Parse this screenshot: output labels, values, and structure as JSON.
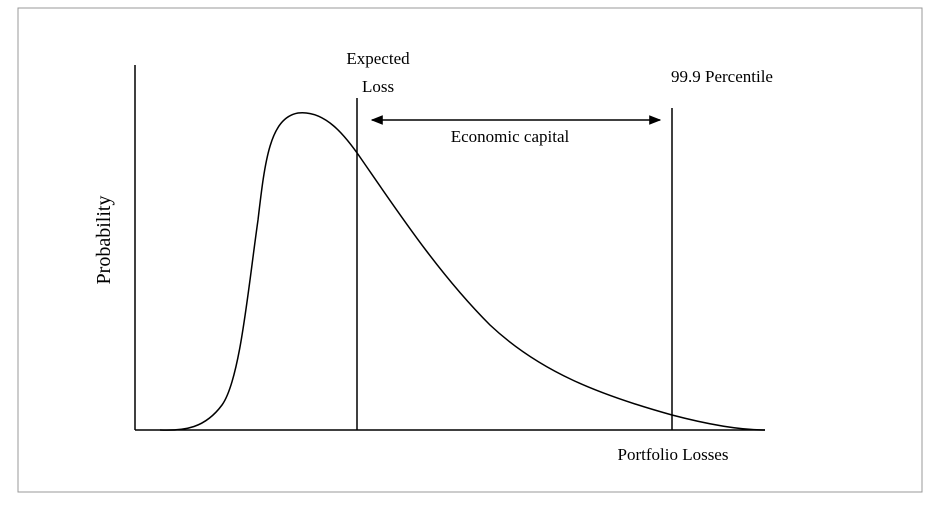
{
  "labels": {
    "y_axis": "Probability",
    "x_axis": "Portfolio Losses",
    "expected_loss_line1": "Expected",
    "expected_loss_line2": "Loss",
    "percentile": "99.9 Percentile",
    "economic_capital": "Economic capital"
  }
}
